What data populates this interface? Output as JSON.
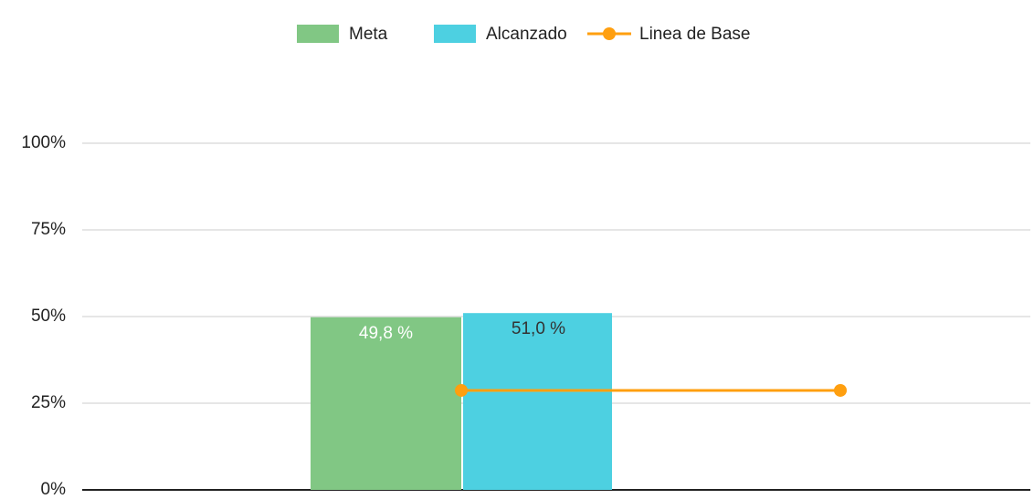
{
  "chart_data": {
    "type": "bar",
    "categories": [
      null,
      null
    ],
    "series": [
      {
        "name": "Meta",
        "color": "#81c784",
        "values": [
          49.8,
          null
        ],
        "value_labels": [
          "49,8 %",
          null
        ],
        "label_color": "#ffffff"
      },
      {
        "name": "Alcanzado",
        "color": "#4dd0e1",
        "values": [
          51.0,
          null
        ],
        "value_labels": [
          "51,0 %",
          null
        ],
        "label_color": "#333333"
      },
      {
        "name": "Linea de Base",
        "type": "line",
        "color": "#ff9f0f",
        "values": [
          28.7,
          28.7
        ]
      }
    ],
    "ylim": [
      0,
      100
    ],
    "yticks": [
      {
        "value": 0,
        "label": "0%"
      },
      {
        "value": 25,
        "label": "25%"
      },
      {
        "value": 50,
        "label": "50%"
      },
      {
        "value": 75,
        "label": "75%"
      },
      {
        "value": 100,
        "label": "100%"
      }
    ],
    "grid": true,
    "legend": "top"
  }
}
